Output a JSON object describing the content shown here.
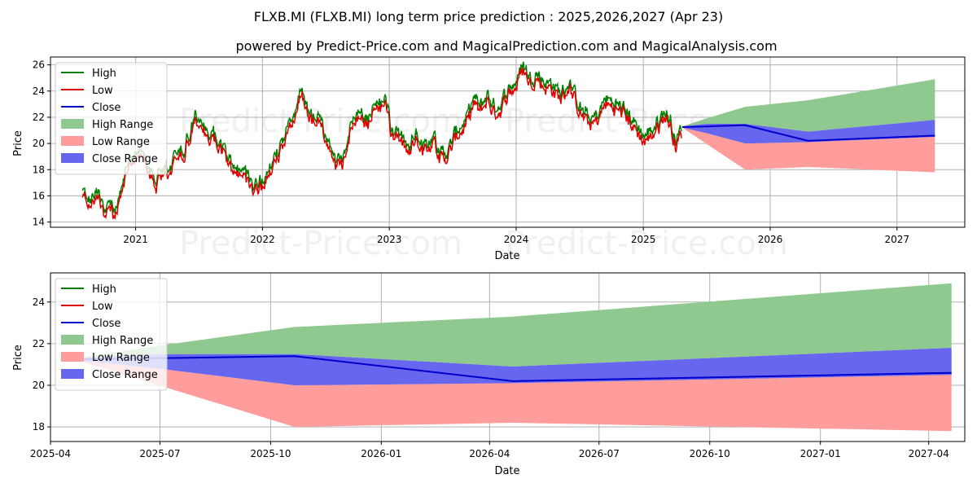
{
  "title": "FLXB.MI (FLXB.MI) long term price prediction : 2025,2026,2027 (Apr 23)",
  "subtitle": "powered by Predict-Price.com and MagicalPrediction.com and MagicalAnalysis.com",
  "watermark": "Predict-Price.com",
  "colors": {
    "high": "#008000",
    "low": "#e00000",
    "close": "#0000cc",
    "high_range": "#8fc98f",
    "low_range": "#ff9c9c",
    "close_range": "#6666ee"
  },
  "legend": {
    "items": [
      {
        "label": "High",
        "kind": "line",
        "color": "#008000"
      },
      {
        "label": "Low",
        "kind": "line",
        "color": "#e00000"
      },
      {
        "label": "Close",
        "kind": "line",
        "color": "#0000cc"
      },
      {
        "label": "High Range",
        "kind": "patch",
        "color": "#8fc98f"
      },
      {
        "label": "Low Range",
        "kind": "patch",
        "color": "#ff9c9c"
      },
      {
        "label": "Close Range",
        "kind": "patch",
        "color": "#6666ee"
      }
    ],
    "placement": "upper-left"
  },
  "chart_data": [
    {
      "type": "line",
      "xlabel": "Date",
      "ylabel": "Price",
      "xlim": [
        "2020-05-01",
        "2027-07-15"
      ],
      "ylim": [
        13.6,
        26.6
      ],
      "grid": true,
      "x_ticks": [
        "2021",
        "2022",
        "2023",
        "2024",
        "2025",
        "2026",
        "2027"
      ],
      "y_ticks": [
        14,
        16,
        18,
        20,
        22,
        24,
        26
      ],
      "history_anchors": [
        [
          "2020-08-01",
          16.5
        ],
        [
          "2020-08-20",
          15.6
        ],
        [
          "2020-09-10",
          16.2
        ],
        [
          "2020-10-01",
          14.8
        ],
        [
          "2020-10-20",
          15.1
        ],
        [
          "2020-11-01",
          14.5
        ],
        [
          "2020-12-01",
          17.5
        ],
        [
          "2020-12-25",
          18.8
        ],
        [
          "2021-01-10",
          19.5
        ],
        [
          "2021-02-01",
          18.5
        ],
        [
          "2021-03-01",
          17.0
        ],
        [
          "2021-03-20",
          17.5
        ],
        [
          "2021-04-15",
          18.2
        ],
        [
          "2021-05-20",
          19.5
        ],
        [
          "2021-06-20",
          21.8
        ],
        [
          "2021-07-10",
          21.0
        ],
        [
          "2021-08-01",
          20.8
        ],
        [
          "2021-09-01",
          19.8
        ],
        [
          "2021-10-01",
          18.3
        ],
        [
          "2021-11-01",
          17.5
        ],
        [
          "2021-12-01",
          16.8
        ],
        [
          "2022-01-01",
          16.9
        ],
        [
          "2022-01-20",
          17.5
        ],
        [
          "2022-02-20",
          19.5
        ],
        [
          "2022-03-20",
          21.0
        ],
        [
          "2022-04-10",
          23.0
        ],
        [
          "2022-04-25",
          23.8
        ],
        [
          "2022-05-15",
          21.5
        ],
        [
          "2022-06-15",
          22.0
        ],
        [
          "2022-07-10",
          19.5
        ],
        [
          "2022-08-01",
          18.3
        ],
        [
          "2022-08-20",
          18.8
        ],
        [
          "2022-09-15",
          21.5
        ],
        [
          "2022-10-15",
          22.5
        ],
        [
          "2022-11-01",
          21.5
        ],
        [
          "2022-11-20",
          23.0
        ],
        [
          "2022-12-10",
          22.5
        ],
        [
          "2022-12-20",
          24.0
        ],
        [
          "2023-01-05",
          21.0
        ],
        [
          "2023-02-01",
          20.2
        ],
        [
          "2023-03-01",
          19.5
        ],
        [
          "2023-03-20",
          20.5
        ],
        [
          "2023-04-15",
          19.8
        ],
        [
          "2023-05-10",
          20.5
        ],
        [
          "2023-05-25",
          19.0
        ],
        [
          "2023-06-20",
          19.2
        ],
        [
          "2023-07-15",
          20.8
        ],
        [
          "2023-08-10",
          21.5
        ],
        [
          "2023-09-01",
          23.2
        ],
        [
          "2023-09-20",
          22.5
        ],
        [
          "2023-10-10",
          23.5
        ],
        [
          "2023-10-30",
          22.5
        ],
        [
          "2023-11-20",
          22.8
        ],
        [
          "2023-12-10",
          24.0
        ],
        [
          "2024-01-01",
          24.5
        ],
        [
          "2024-01-20",
          25.8
        ],
        [
          "2024-02-10",
          24.8
        ],
        [
          "2024-03-01",
          25.2
        ],
        [
          "2024-03-20",
          24.5
        ],
        [
          "2024-04-15",
          24.3
        ],
        [
          "2024-05-10",
          23.5
        ],
        [
          "2024-06-01",
          24.5
        ],
        [
          "2024-06-25",
          23.0
        ],
        [
          "2024-07-15",
          22.0
        ],
        [
          "2024-08-05",
          21.5
        ],
        [
          "2024-08-25",
          22.0
        ],
        [
          "2024-09-15",
          23.2
        ],
        [
          "2024-10-10",
          22.8
        ],
        [
          "2024-11-01",
          22.5
        ],
        [
          "2024-11-20",
          22.0
        ],
        [
          "2024-12-15",
          21.0
        ],
        [
          "2025-01-05",
          20.3
        ],
        [
          "2025-01-25",
          20.8
        ],
        [
          "2025-02-15",
          21.5
        ],
        [
          "2025-03-05",
          22.3
        ],
        [
          "2025-03-20",
          21.5
        ],
        [
          "2025-04-05",
          20.0
        ],
        [
          "2025-04-15",
          20.5
        ],
        [
          "2025-04-23",
          21.2
        ]
      ],
      "forecast": {
        "dates": [
          "2025-04-23",
          "2025-06-30",
          "2025-10-21",
          "2026-04-20",
          "2027-04-20"
        ],
        "close": [
          21.25,
          21.3,
          21.4,
          20.2,
          20.6
        ],
        "close_upper": [
          21.3,
          21.5,
          21.5,
          20.9,
          21.8
        ],
        "close_lower": [
          21.2,
          20.8,
          20.0,
          20.1,
          20.5
        ],
        "high_upper": [
          21.3,
          21.9,
          22.8,
          23.3,
          24.9
        ],
        "low_lower": [
          21.2,
          20.0,
          18.0,
          18.2,
          17.8
        ]
      }
    },
    {
      "type": "line",
      "xlabel": "Date",
      "ylabel": "Price",
      "xlim": [
        "2025-04-01",
        "2027-05-01"
      ],
      "ylim": [
        17.3,
        25.4
      ],
      "grid": true,
      "x_ticks": [
        "2025-04",
        "2025-07",
        "2025-10",
        "2026-01",
        "2026-04",
        "2026-07",
        "2026-10",
        "2027-01",
        "2027-04"
      ],
      "y_ticks": [
        18,
        20,
        22,
        24
      ]
    }
  ]
}
